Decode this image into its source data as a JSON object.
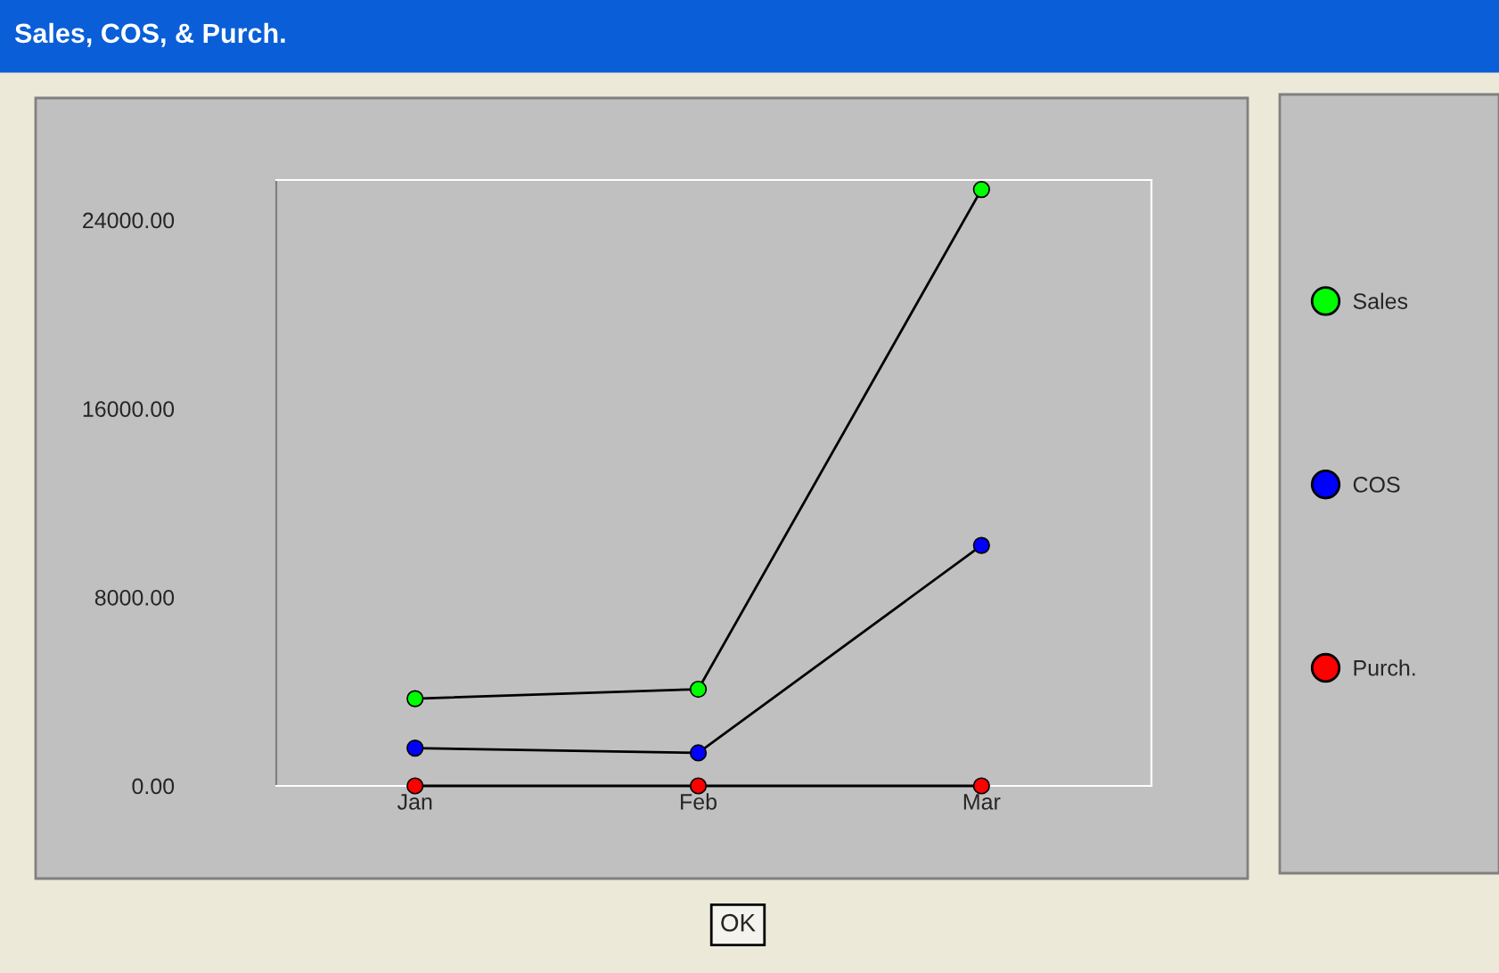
{
  "chart_data": {
    "type": "line",
    "title": "Sales, COS, & Purch.",
    "categories": [
      "Jan",
      "Feb",
      "Mar"
    ],
    "series": [
      {
        "name": "Sales",
        "color": "#00ff00",
        "values": [
          3700,
          4100,
          25300
        ]
      },
      {
        "name": "COS",
        "color": "#0000ff",
        "values": [
          1600,
          1400,
          10200
        ]
      },
      {
        "name": "Purch.",
        "color": "#ff0000",
        "values": [
          0,
          0,
          0
        ]
      }
    ],
    "ylim": [
      0,
      25700
    ],
    "yticks": [
      {
        "value": 0,
        "label": "0.00"
      },
      {
        "value": 8000,
        "label": "8000.00"
      },
      {
        "value": 16000,
        "label": "16000.00"
      },
      {
        "value": 24000,
        "label": "24000.00"
      }
    ],
    "marker": "circle",
    "line_style": "solid",
    "grid": false,
    "legend": "right",
    "annotations": [
      "OK"
    ]
  }
}
